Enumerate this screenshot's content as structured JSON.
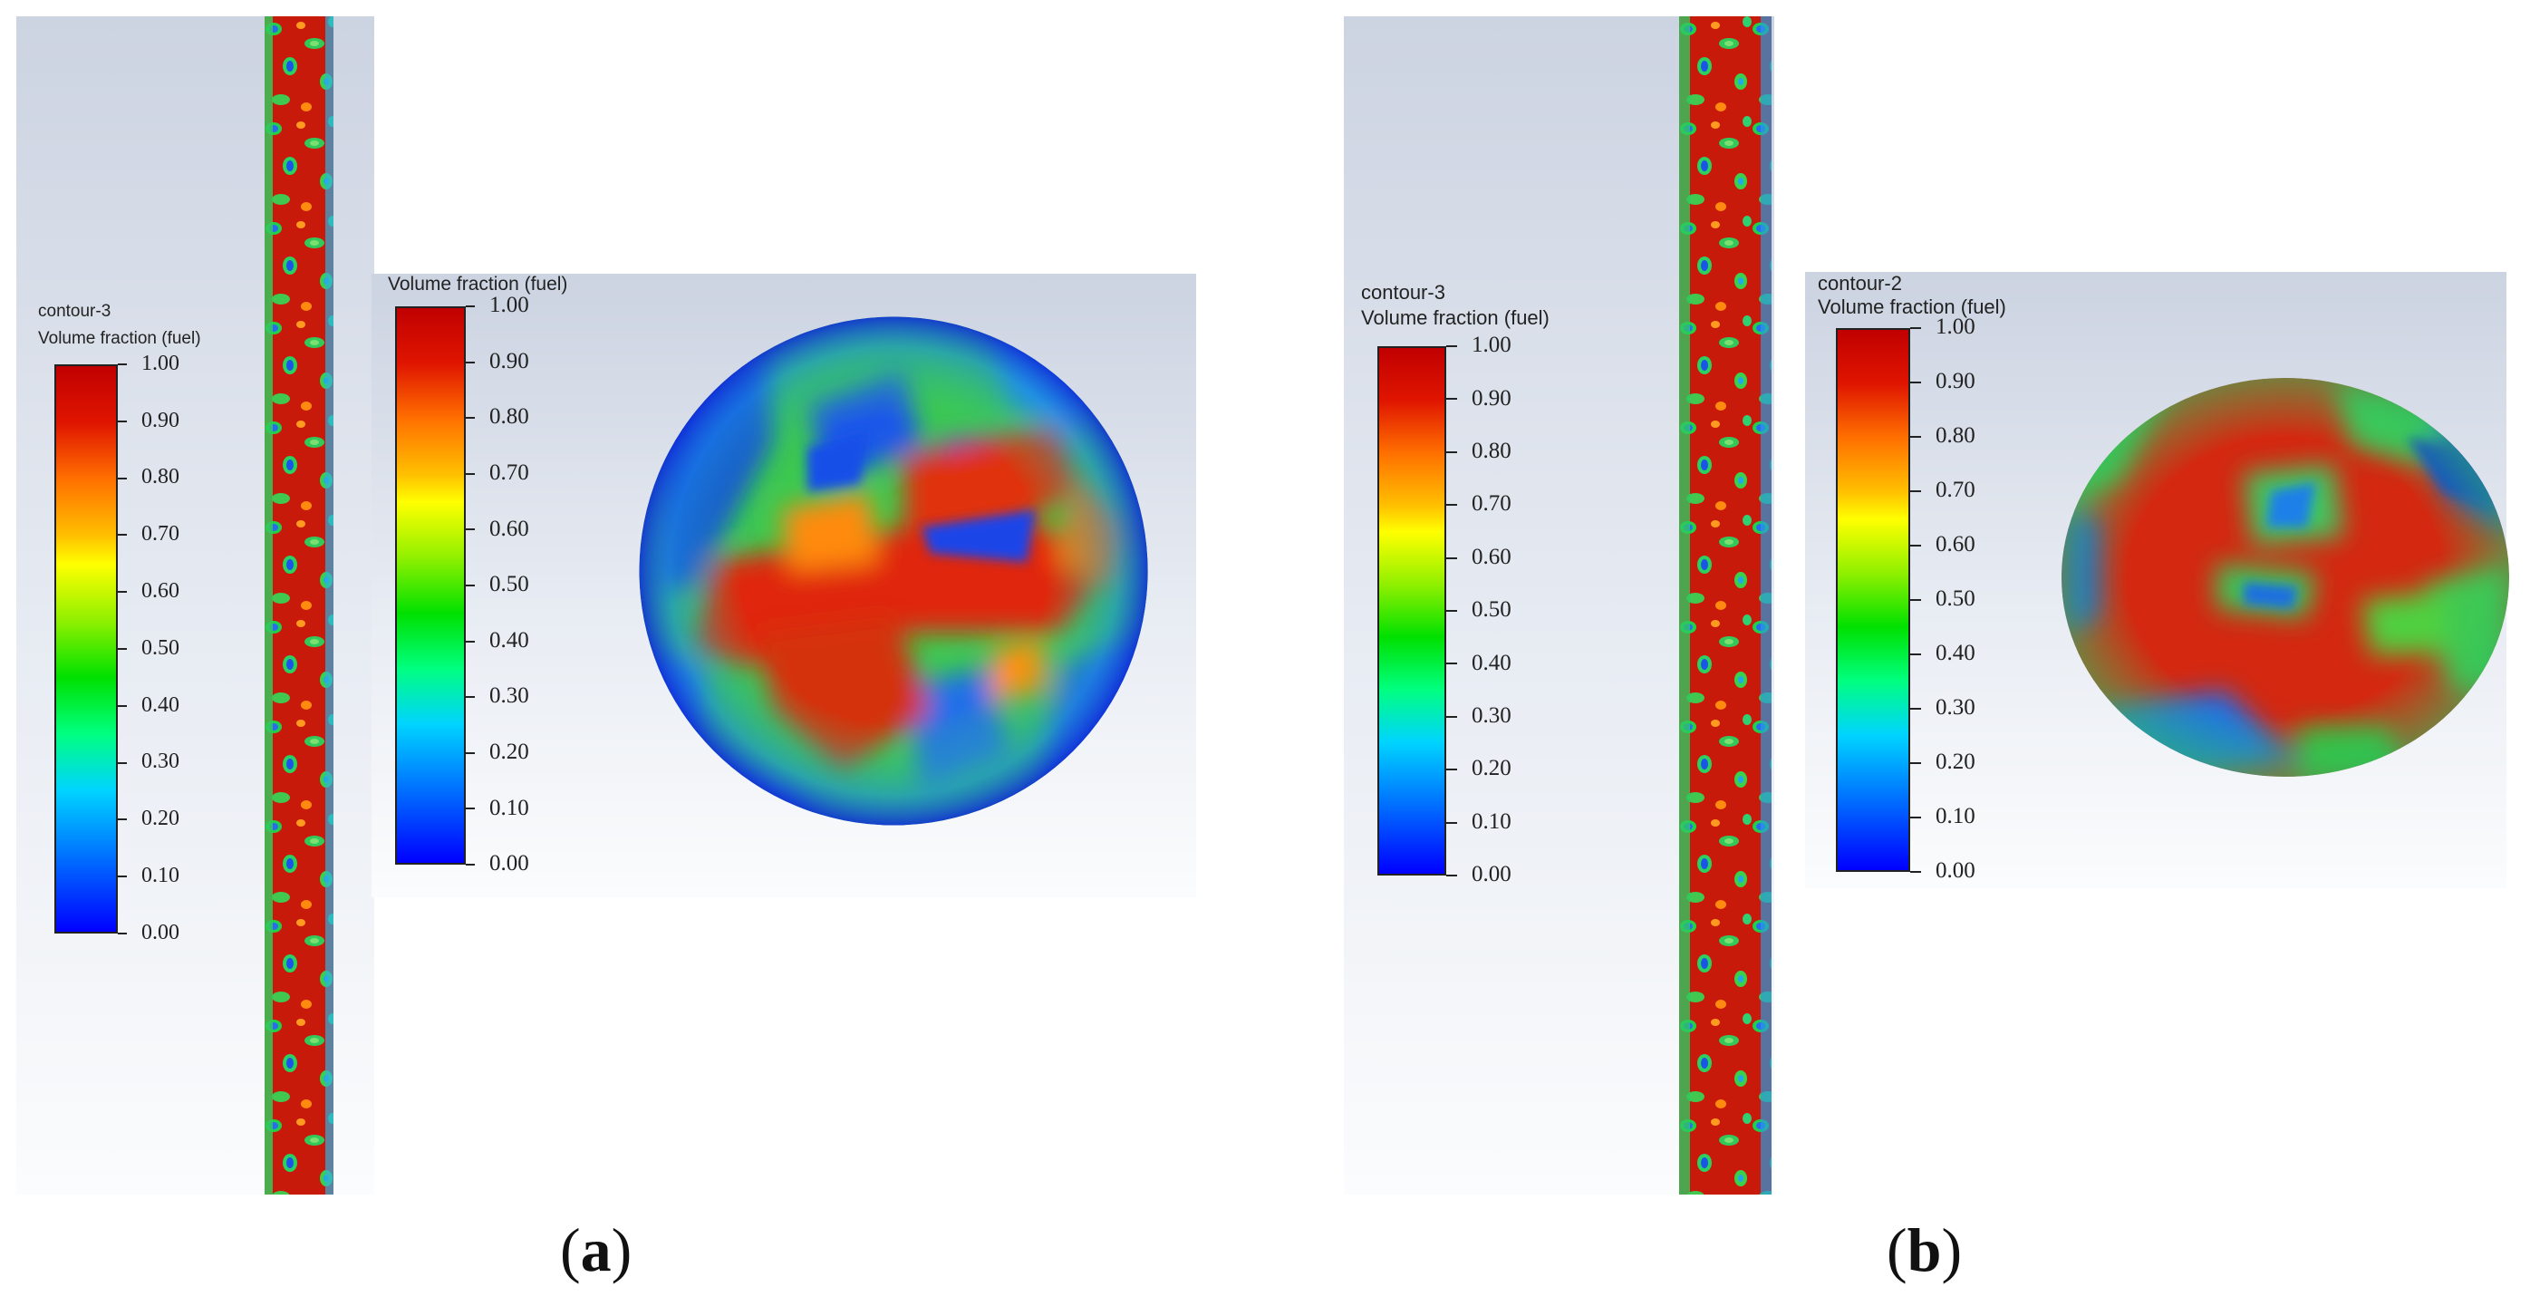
{
  "colors": {
    "scale": [
      "#0000ff",
      "#0066ff",
      "#00d4ff",
      "#00ff80",
      "#00e000",
      "#90f000",
      "#ffff00",
      "#ffc000",
      "#ff7000",
      "#e01500",
      "#c00000"
    ],
    "panel_bg_top": "#ccd3e1",
    "panel_bg_bottom": "#fbfcfd"
  },
  "panels": [
    {
      "label_paren_open": "(",
      "label_letter": "a",
      "label_paren_close": ")",
      "pipe_legend": {
        "contour": "contour-3",
        "title": "Volume fraction (fuel)",
        "ticks": [
          "1.00",
          "0.90",
          "0.80",
          "0.70",
          "0.60",
          "0.50",
          "0.40",
          "0.30",
          "0.20",
          "0.10",
          "0.00"
        ]
      },
      "section_legend": {
        "contour": "",
        "title": "Volume fraction (fuel)",
        "ticks": [
          "1.00",
          "0.90",
          "0.80",
          "0.70",
          "0.60",
          "0.50",
          "0.40",
          "0.30",
          "0.20",
          "0.10",
          "0.00"
        ]
      }
    },
    {
      "label_paren_open": "(",
      "label_letter": "b",
      "label_paren_close": ")",
      "pipe_legend": {
        "contour": "contour-3",
        "title": "Volume fraction (fuel)",
        "ticks": [
          "1.00",
          "0.90",
          "0.80",
          "0.70",
          "0.60",
          "0.50",
          "0.40",
          "0.30",
          "0.20",
          "0.10",
          "0.00"
        ]
      },
      "section_legend": {
        "contour": "contour-2",
        "title": "Volume fraction (fuel)",
        "ticks": [
          "1.00",
          "0.90",
          "0.80",
          "0.70",
          "0.60",
          "0.50",
          "0.40",
          "0.30",
          "0.20",
          "0.10",
          "0.00"
        ]
      }
    }
  ]
}
